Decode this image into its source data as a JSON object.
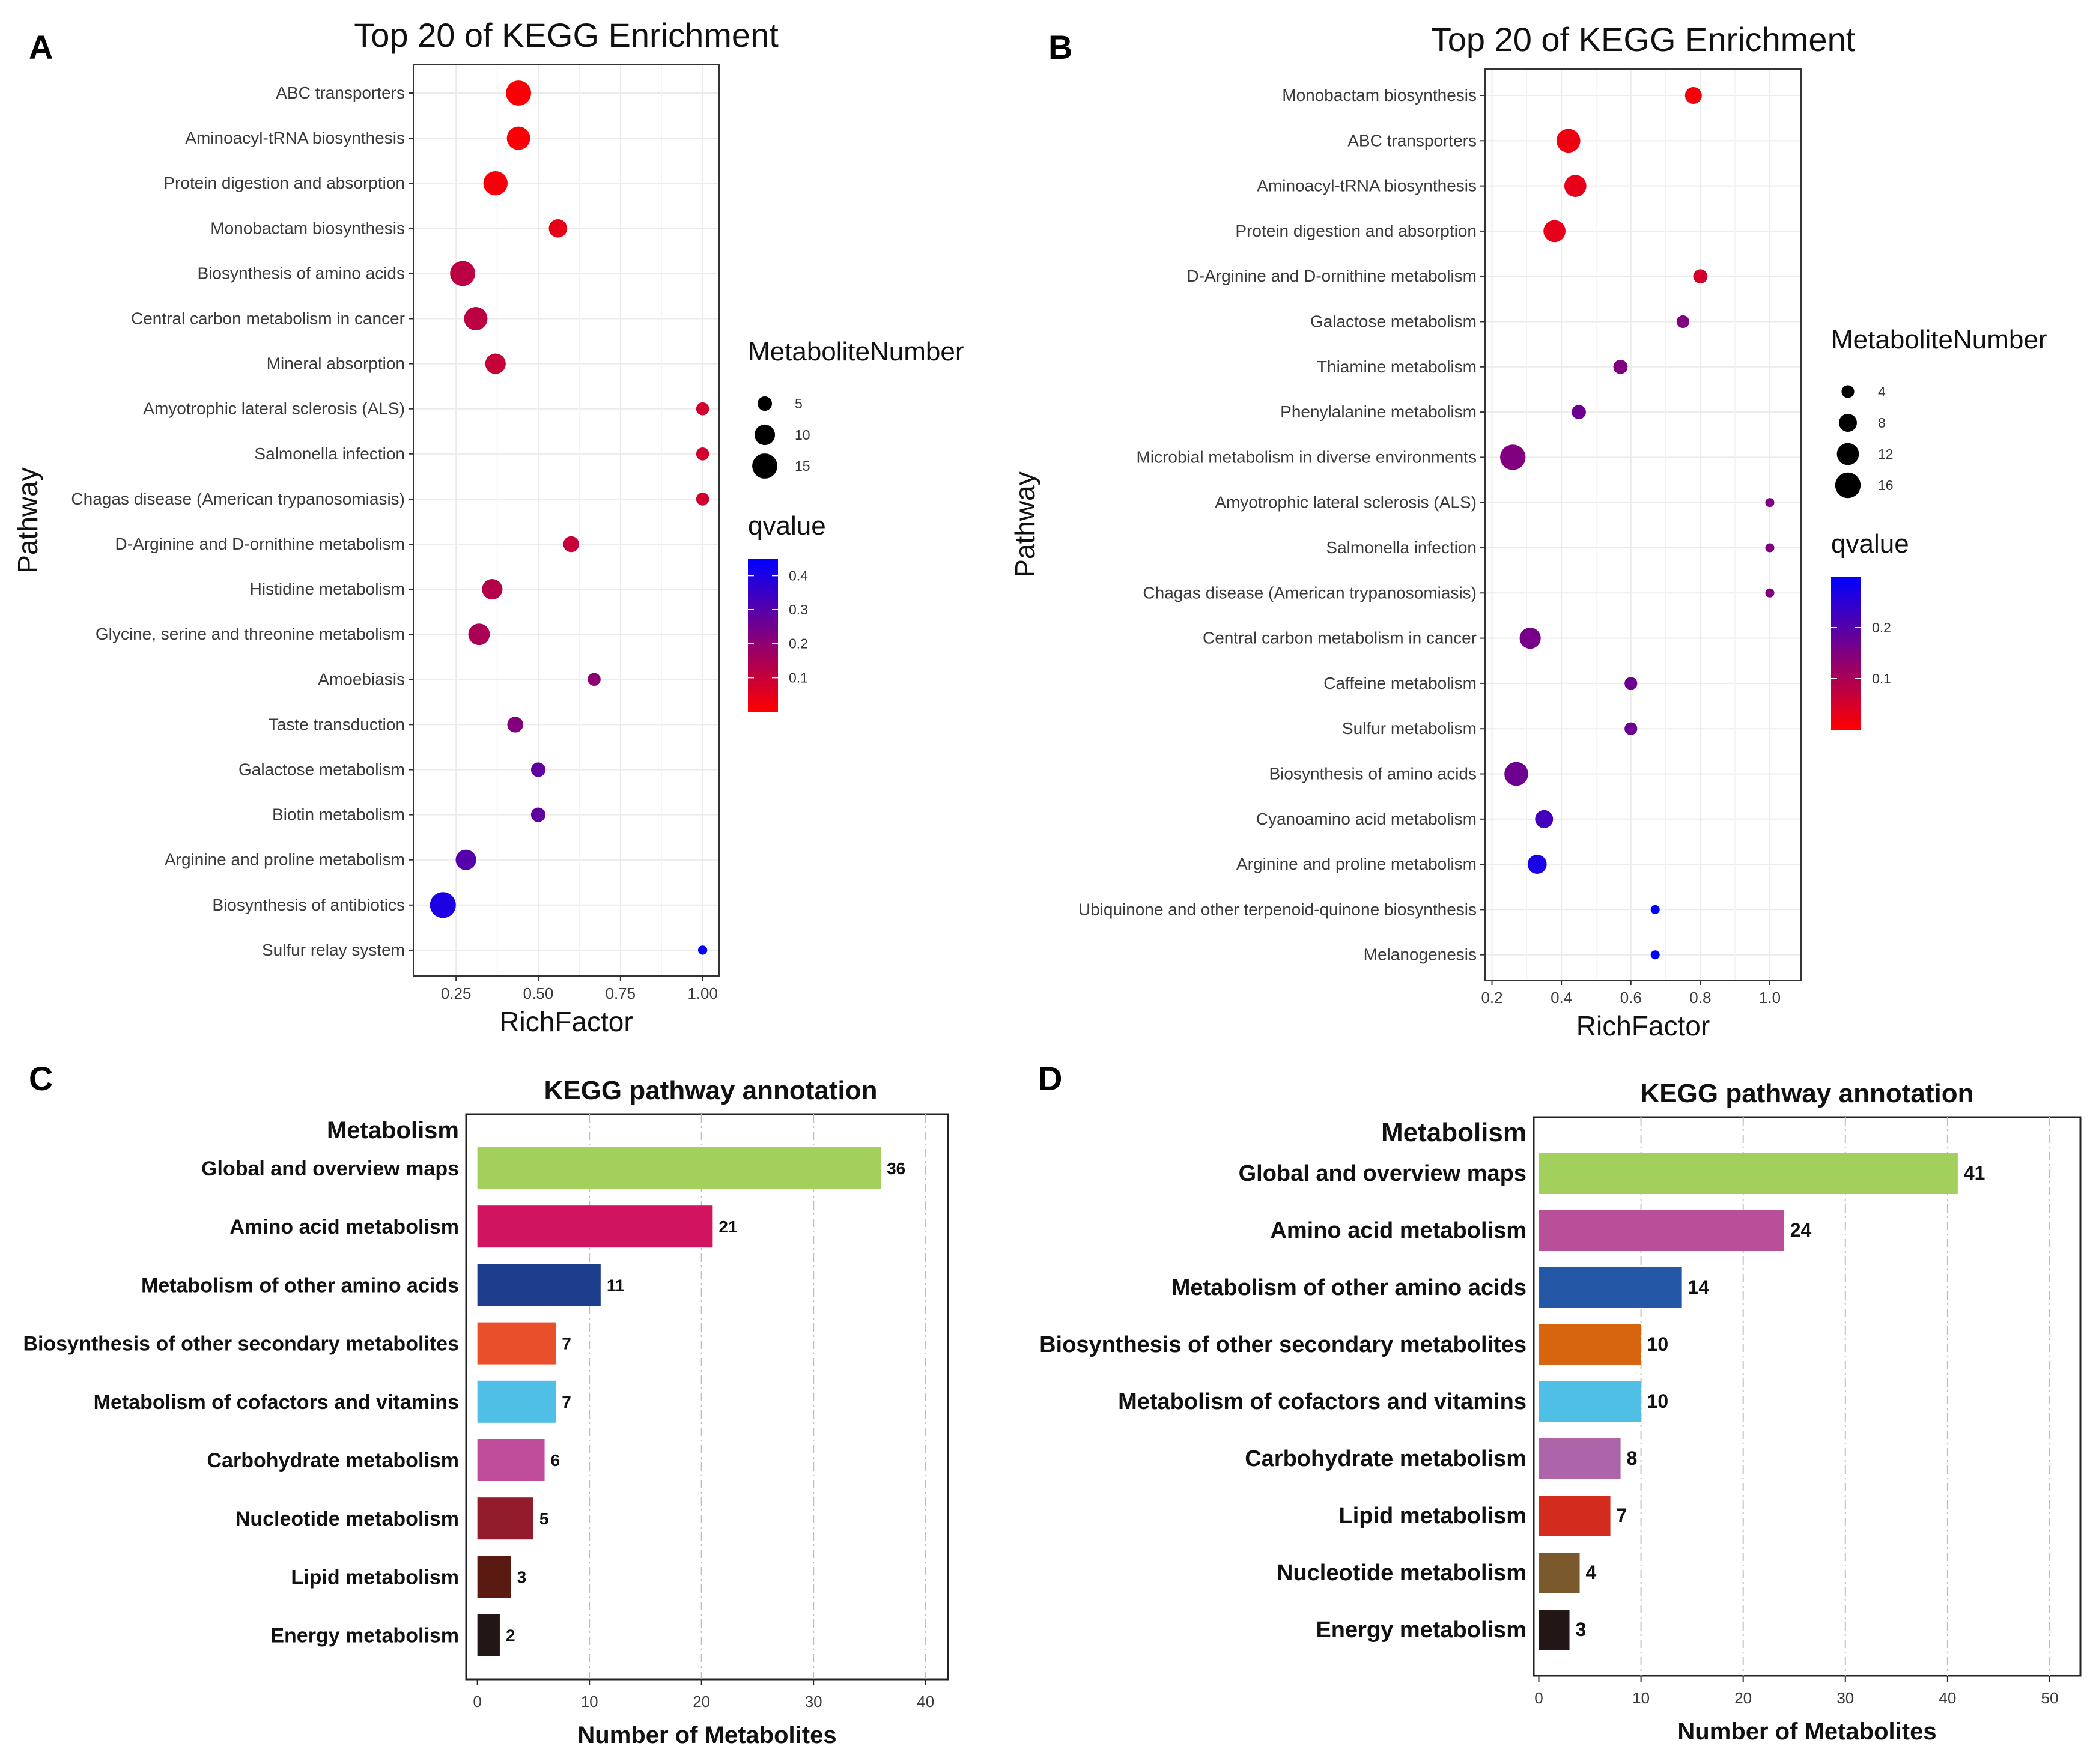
{
  "panels": {
    "a": {
      "letter": "A"
    },
    "b": {
      "letter": "B"
    },
    "c": {
      "letter": "C"
    },
    "d": {
      "letter": "D"
    }
  },
  "chart_data": [
    {
      "id": "a",
      "type": "scatter",
      "title": "Top 20 of KEGG Enrichment",
      "xlabel": "RichFactor",
      "ylabel": "Pathway",
      "xlim": [
        0.12,
        1.05
      ],
      "xticks": [
        0.25,
        0.5,
        0.75,
        1.0
      ],
      "xtick_labels": [
        "0.25",
        "0.50",
        "0.75",
        "1.00"
      ],
      "size_legend": {
        "title": "MetaboliteNumber",
        "values": [
          5,
          10,
          15
        ],
        "labels": [
          "5",
          "10",
          "15"
        ]
      },
      "color_legend": {
        "title": "qvalue",
        "min": 0.0,
        "max": 0.45,
        "ticks": [
          0.4,
          0.3,
          0.2,
          0.1
        ],
        "tick_labels": [
          "0.4",
          "0.3",
          "0.2",
          "0.1"
        ],
        "low_color": "#ff0000",
        "high_color": "#0000ff"
      },
      "grid": true,
      "points": [
        {
          "pathway": "ABC transporters",
          "rich_factor": 0.44,
          "count": 15,
          "qvalue": 0.01
        },
        {
          "pathway": "Aminoacyl-tRNA biosynthesis",
          "rich_factor": 0.44,
          "count": 13,
          "qvalue": 0.01
        },
        {
          "pathway": "Protein digestion and absorption",
          "rich_factor": 0.37,
          "count": 14,
          "qvalue": 0.02
        },
        {
          "pathway": "Monobactam biosynthesis",
          "rich_factor": 0.56,
          "count": 8,
          "qvalue": 0.04
        },
        {
          "pathway": "Biosynthesis of amino acids",
          "rich_factor": 0.27,
          "count": 15,
          "qvalue": 0.12
        },
        {
          "pathway": "Central carbon metabolism in cancer",
          "rich_factor": 0.31,
          "count": 13,
          "qvalue": 0.12
        },
        {
          "pathway": "Mineral absorption",
          "rich_factor": 0.37,
          "count": 10,
          "qvalue": 0.1
        },
        {
          "pathway": "Amyotrophic lateral sclerosis (ALS)",
          "rich_factor": 1.0,
          "count": 4,
          "qvalue": 0.08
        },
        {
          "pathway": "Salmonella infection",
          "rich_factor": 1.0,
          "count": 4,
          "qvalue": 0.08
        },
        {
          "pathway": "Chagas disease (American trypanosomiasis)",
          "rich_factor": 1.0,
          "count": 4,
          "qvalue": 0.08
        },
        {
          "pathway": "D-Arginine and D-ornithine metabolism",
          "rich_factor": 0.6,
          "count": 6,
          "qvalue": 0.1
        },
        {
          "pathway": "Histidine metabolism",
          "rich_factor": 0.36,
          "count": 10,
          "qvalue": 0.13
        },
        {
          "pathway": "Glycine, serine and threonine metabolism",
          "rich_factor": 0.32,
          "count": 11,
          "qvalue": 0.15
        },
        {
          "pathway": "Amoebiasis",
          "rich_factor": 0.67,
          "count": 4,
          "qvalue": 0.2
        },
        {
          "pathway": "Taste transduction",
          "rich_factor": 0.43,
          "count": 6,
          "qvalue": 0.22
        },
        {
          "pathway": "Galactose metabolism",
          "rich_factor": 0.5,
          "count": 5,
          "qvalue": 0.28
        },
        {
          "pathway": "Biotin metabolism",
          "rich_factor": 0.5,
          "count": 5,
          "qvalue": 0.28
        },
        {
          "pathway": "Arginine and proline metabolism",
          "rich_factor": 0.28,
          "count": 10,
          "qvalue": 0.3
        },
        {
          "pathway": "Biosynthesis of antibiotics",
          "rich_factor": 0.21,
          "count": 16,
          "qvalue": 0.4
        },
        {
          "pathway": "Sulfur relay system",
          "rich_factor": 1.0,
          "count": 2,
          "qvalue": 0.44
        }
      ]
    },
    {
      "id": "b",
      "type": "scatter",
      "title": "Top 20 of KEGG Enrichment",
      "xlabel": "RichFactor",
      "ylabel": "Pathway",
      "xlim": [
        0.18,
        1.09
      ],
      "xticks": [
        0.2,
        0.4,
        0.6,
        0.8,
        1.0
      ],
      "xtick_labels": [
        "0.2",
        "0.4",
        "0.6",
        "0.8",
        "1.0"
      ],
      "size_legend": {
        "title": "MetaboliteNumber",
        "values": [
          4,
          8,
          12,
          16
        ],
        "labels": [
          "4",
          "8",
          "12",
          "16"
        ]
      },
      "color_legend": {
        "title": "qvalue",
        "min": 0.0,
        "max": 0.3,
        "ticks": [
          0.2,
          0.1
        ],
        "tick_labels": [
          "0.2",
          "0.1"
        ],
        "low_color": "#ff0000",
        "high_color": "#0000ff"
      },
      "grid": true,
      "points": [
        {
          "pathway": "Monobactam biosynthesis",
          "rich_factor": 0.78,
          "count": 7,
          "qvalue": 0.01
        },
        {
          "pathway": "ABC transporters",
          "rich_factor": 0.42,
          "count": 14,
          "qvalue": 0.02
        },
        {
          "pathway": "Aminoacyl-tRNA biosynthesis",
          "rich_factor": 0.44,
          "count": 12,
          "qvalue": 0.03
        },
        {
          "pathway": "Protein digestion and absorption",
          "rich_factor": 0.38,
          "count": 12,
          "qvalue": 0.03
        },
        {
          "pathway": "D-Arginine and D-ornithine metabolism",
          "rich_factor": 0.8,
          "count": 5,
          "qvalue": 0.05
        },
        {
          "pathway": "Galactose metabolism",
          "rich_factor": 0.75,
          "count": 4,
          "qvalue": 0.15
        },
        {
          "pathway": "Thiamine metabolism",
          "rich_factor": 0.57,
          "count": 5,
          "qvalue": 0.15
        },
        {
          "pathway": "Phenylalanine metabolism",
          "rich_factor": 0.45,
          "count": 5,
          "qvalue": 0.17
        },
        {
          "pathway": "Microbial metabolism in diverse environments",
          "rich_factor": 0.26,
          "count": 16,
          "qvalue": 0.15
        },
        {
          "pathway": "Amyotrophic lateral sclerosis (ALS)",
          "rich_factor": 1.0,
          "count": 2,
          "qvalue": 0.15
        },
        {
          "pathway": "Salmonella infection",
          "rich_factor": 1.0,
          "count": 2,
          "qvalue": 0.15
        },
        {
          "pathway": "Chagas disease (American trypanosomiasis)",
          "rich_factor": 1.0,
          "count": 2,
          "qvalue": 0.15
        },
        {
          "pathway": "Central carbon metabolism in cancer",
          "rich_factor": 0.31,
          "count": 11,
          "qvalue": 0.16
        },
        {
          "pathway": "Caffeine metabolism",
          "rich_factor": 0.6,
          "count": 4,
          "qvalue": 0.17
        },
        {
          "pathway": "Sulfur metabolism",
          "rich_factor": 0.6,
          "count": 4,
          "qvalue": 0.17
        },
        {
          "pathway": "Biosynthesis of amino acids",
          "rich_factor": 0.27,
          "count": 14,
          "qvalue": 0.17
        },
        {
          "pathway": "Cyanoamino acid metabolism",
          "rich_factor": 0.35,
          "count": 8,
          "qvalue": 0.22
        },
        {
          "pathway": "Arginine and proline metabolism",
          "rich_factor": 0.33,
          "count": 9,
          "qvalue": 0.27
        },
        {
          "pathway": "Ubiquinone and other terpenoid-quinone biosynthesis",
          "rich_factor": 0.67,
          "count": 2,
          "qvalue": 0.3
        },
        {
          "pathway": "Melanogenesis",
          "rich_factor": 0.67,
          "count": 2,
          "qvalue": 0.3
        }
      ]
    },
    {
      "id": "c",
      "type": "bar",
      "orientation": "horizontal",
      "title": "KEGG pathway annotation",
      "group_label": "Metabolism",
      "xlabel": "Number of Metabolites",
      "xlim": [
        -1,
        42
      ],
      "xticks": [
        0,
        10,
        20,
        30,
        40
      ],
      "xtick_labels": [
        "0",
        "10",
        "20",
        "30",
        "40"
      ],
      "categories": [
        "Global and overview maps",
        "Amino acid metabolism",
        "Metabolism of other amino acids",
        "Biosynthesis of other secondary metabolites",
        "Metabolism of cofactors and vitamins",
        "Carbohydrate metabolism",
        "Nucleotide metabolism",
        "Lipid metabolism",
        "Energy metabolism"
      ],
      "values": [
        36,
        21,
        11,
        7,
        7,
        6,
        5,
        3,
        2
      ],
      "value_labels": [
        "36",
        "21",
        "11",
        "7",
        "7",
        "6",
        "5",
        "3",
        "2"
      ],
      "colors": [
        "#a3cf5c",
        "#d1145f",
        "#1c3c8c",
        "#ea4f2c",
        "#4fbfe6",
        "#c04c9c",
        "#931c2c",
        "#5a1a12",
        "#221616"
      ]
    },
    {
      "id": "d",
      "type": "bar",
      "orientation": "horizontal",
      "title": "KEGG pathway annotation",
      "group_label": "Metabolism",
      "xlabel": "Number of Metabolites",
      "xlim": [
        -0.5,
        53
      ],
      "xticks": [
        0,
        10,
        20,
        30,
        40,
        50
      ],
      "xtick_labels": [
        "0",
        "10",
        "20",
        "30",
        "40",
        "50"
      ],
      "categories": [
        "Global and overview maps",
        "Amino acid metabolism",
        "Metabolism of other amino acids",
        "Biosynthesis of other secondary metabolites",
        "Metabolism of cofactors and vitamins",
        "Carbohydrate metabolism",
        "Lipid metabolism",
        "Nucleotide metabolism",
        "Energy metabolism"
      ],
      "values": [
        41,
        24,
        14,
        10,
        10,
        8,
        7,
        4,
        3
      ],
      "value_labels": [
        "41",
        "24",
        "14",
        "10",
        "10",
        "8",
        "7",
        "4",
        "3"
      ],
      "colors": [
        "#a3cf5c",
        "#b94e99",
        "#2557a7",
        "#d7650f",
        "#4fbfe6",
        "#ae64a8",
        "#d42b1f",
        "#7a5a2c",
        "#221616"
      ]
    }
  ]
}
